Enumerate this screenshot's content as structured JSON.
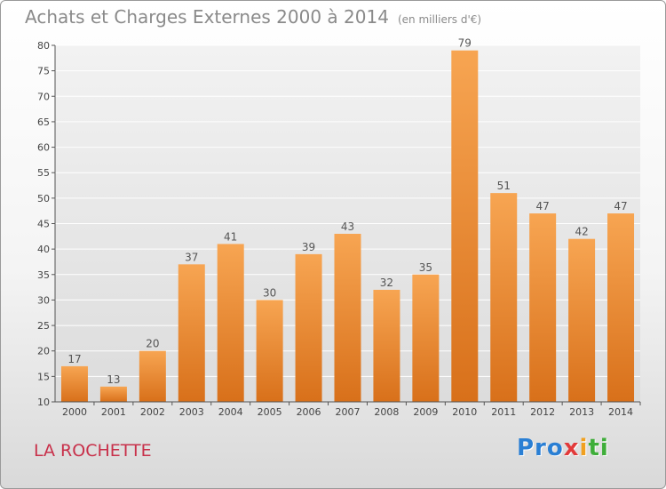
{
  "chart_data": {
    "type": "bar",
    "title": "Achats et Charges Externes 2000 à 2014",
    "subtitle": "(en milliers d'€)",
    "xlabel": "",
    "ylabel": "",
    "categories": [
      "2000",
      "2001",
      "2002",
      "2003",
      "2004",
      "2005",
      "2006",
      "2007",
      "2008",
      "2009",
      "2010",
      "2011",
      "2012",
      "2013",
      "2014"
    ],
    "values": [
      17,
      13,
      20,
      37,
      41,
      30,
      39,
      43,
      32,
      35,
      79,
      51,
      47,
      42,
      47
    ],
    "ylim": [
      10,
      80
    ],
    "yticks": [
      10,
      15,
      20,
      25,
      30,
      35,
      40,
      45,
      50,
      55,
      60,
      65,
      70,
      75,
      80
    ],
    "grid": true,
    "bar_color": "#f08c2e"
  },
  "footer": {
    "city": "LA ROCHETTE",
    "logo": {
      "p1": "Pro",
      "p2": "x",
      "p3": "i",
      "p4": "ti"
    }
  }
}
